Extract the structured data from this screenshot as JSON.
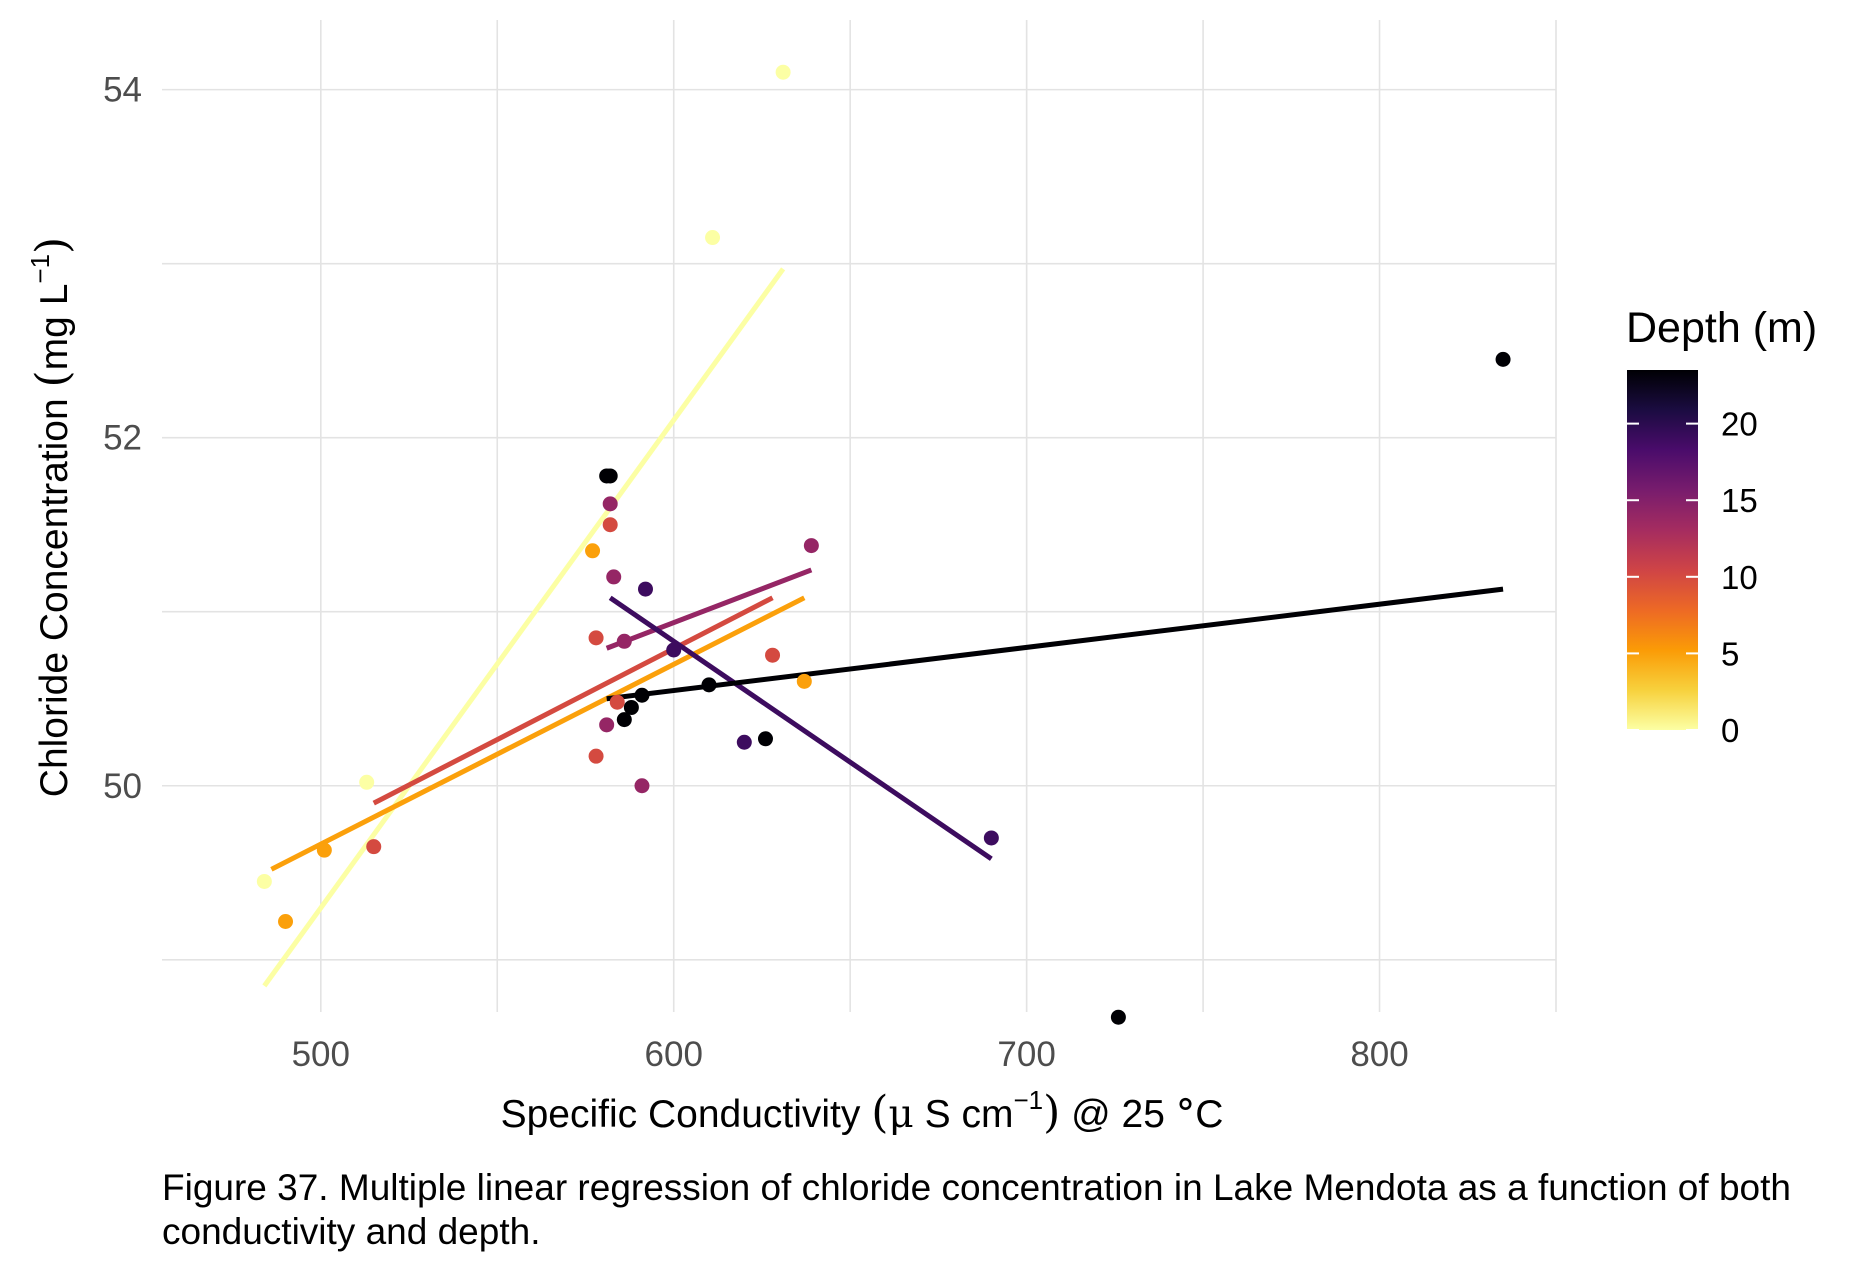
{
  "chart_data": {
    "type": "scatter",
    "title": "",
    "xlabel": "Specific Conductivity (μ S cm⁻¹) @ 25 °C",
    "ylabel": "Chloride Concentration (mg L⁻¹)",
    "xlabel_parts": {
      "pre": "Specific Conductivity ",
      "mu": "μ",
      "unit": " S cm",
      "sup": "−1",
      "post": " @ 25 ",
      "deg": "°",
      "c": "C"
    },
    "ylabel_parts": {
      "pre": "Chloride Concentration ",
      "unit": "mg L",
      "sup": "−1"
    },
    "xlim": [
      455,
      850
    ],
    "ylim": [
      48.7,
      54.4
    ],
    "x_ticks": [
      500,
      600,
      700,
      800
    ],
    "y_ticks": [
      50,
      52,
      54
    ],
    "x_ticks_text": [
      "500",
      "600",
      "700",
      "800"
    ],
    "y_ticks_text": [
      "50",
      "52",
      "54"
    ],
    "grid": true,
    "legend": {
      "title": "Depth (m)",
      "position": "right",
      "type": "colorbar",
      "range": [
        0,
        23.5
      ],
      "ticks": [
        0,
        5,
        10,
        15,
        20
      ],
      "ticks_text": [
        "0",
        "5",
        "10",
        "15",
        "20"
      ],
      "colormap": [
        "#fcffa4",
        "#f7d13d",
        "#fb9b06",
        "#ed6925",
        "#cf4446",
        "#a52c60",
        "#781c6d",
        "#4a0c6b",
        "#1b0c41",
        "#000004"
      ]
    },
    "points": [
      {
        "x": 484,
        "y": 49.45,
        "depth": 0
      },
      {
        "x": 513,
        "y": 50.02,
        "depth": 0
      },
      {
        "x": 611,
        "y": 53.15,
        "depth": 0
      },
      {
        "x": 631,
        "y": 54.1,
        "depth": 0
      },
      {
        "x": 490,
        "y": 49.22,
        "depth": 5
      },
      {
        "x": 501,
        "y": 49.63,
        "depth": 5
      },
      {
        "x": 577,
        "y": 51.35,
        "depth": 5
      },
      {
        "x": 637,
        "y": 50.6,
        "depth": 5
      },
      {
        "x": 515,
        "y": 49.65,
        "depth": 10
      },
      {
        "x": 578,
        "y": 50.85,
        "depth": 10
      },
      {
        "x": 578,
        "y": 50.17,
        "depth": 10
      },
      {
        "x": 582,
        "y": 51.5,
        "depth": 10
      },
      {
        "x": 584,
        "y": 50.48,
        "depth": 10
      },
      {
        "x": 628,
        "y": 50.75,
        "depth": 10
      },
      {
        "x": 581,
        "y": 50.35,
        "depth": 14
      },
      {
        "x": 582,
        "y": 51.62,
        "depth": 14
      },
      {
        "x": 583,
        "y": 51.2,
        "depth": 14
      },
      {
        "x": 586,
        "y": 50.83,
        "depth": 14
      },
      {
        "x": 591,
        "y": 50.0,
        "depth": 14
      },
      {
        "x": 639,
        "y": 51.38,
        "depth": 14
      },
      {
        "x": 592,
        "y": 51.13,
        "depth": 19
      },
      {
        "x": 600,
        "y": 50.78,
        "depth": 19
      },
      {
        "x": 620,
        "y": 50.25,
        "depth": 19
      },
      {
        "x": 690,
        "y": 49.7,
        "depth": 19
      },
      {
        "x": 581,
        "y": 51.78,
        "depth": 23.5
      },
      {
        "x": 582,
        "y": 51.78,
        "depth": 23.5
      },
      {
        "x": 586,
        "y": 50.38,
        "depth": 23.5
      },
      {
        "x": 588,
        "y": 50.45,
        "depth": 23.5
      },
      {
        "x": 591,
        "y": 50.52,
        "depth": 23.5
      },
      {
        "x": 610,
        "y": 50.58,
        "depth": 23.5
      },
      {
        "x": 626,
        "y": 50.27,
        "depth": 23.5
      },
      {
        "x": 726,
        "y": 48.67,
        "depth": 23.5
      },
      {
        "x": 835,
        "y": 52.45,
        "depth": 23.5
      }
    ],
    "fit_lines": [
      {
        "depth": 0,
        "x": [
          484,
          631
        ],
        "y": [
          48.85,
          52.97
        ]
      },
      {
        "depth": 5,
        "x": [
          486,
          637
        ],
        "y": [
          49.52,
          51.08
        ]
      },
      {
        "depth": 10,
        "x": [
          515,
          628
        ],
        "y": [
          49.9,
          51.08
        ]
      },
      {
        "depth": 14,
        "x": [
          581,
          639
        ],
        "y": [
          50.79,
          51.24
        ]
      },
      {
        "depth": 19,
        "x": [
          582,
          690
        ],
        "y": [
          51.08,
          49.58
        ]
      },
      {
        "depth": 23.5,
        "x": [
          581,
          835
        ],
        "y": [
          50.5,
          51.13
        ]
      }
    ]
  },
  "caption": "Figure 37. Multiple linear regression of chloride concentration in Lake Mendota as a function of both conductivity and depth."
}
